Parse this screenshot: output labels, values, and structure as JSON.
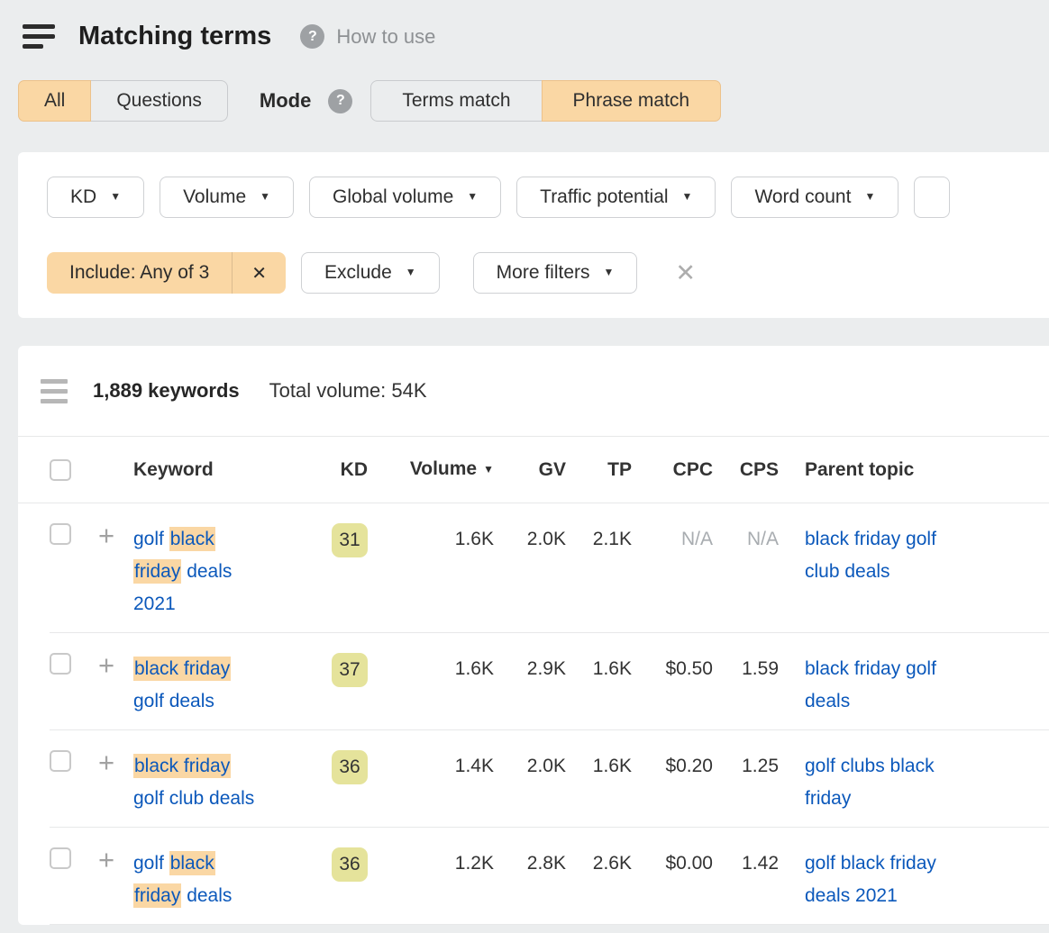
{
  "header": {
    "title": "Matching terms",
    "help_label": "How to use"
  },
  "tabs": {
    "scope": [
      "All",
      "Questions"
    ],
    "scope_active": "All",
    "mode_label": "Mode",
    "modes": [
      "Terms match",
      "Phrase match"
    ],
    "mode_active": "Phrase match"
  },
  "filters": {
    "metric_dropdowns": [
      "KD",
      "Volume",
      "Global volume",
      "Traffic potential",
      "Word count"
    ],
    "include_chip_label": "Include: Any of 3",
    "exclude_label": "Exclude",
    "more_filters_label": "More filters"
  },
  "results": {
    "count_label": "1,889 keywords",
    "total_volume_label": "Total volume: 54K"
  },
  "table": {
    "columns": [
      "Keyword",
      "KD",
      "Volume",
      "GV",
      "TP",
      "CPC",
      "CPS",
      "Parent topic"
    ],
    "sort": {
      "column": "Volume",
      "direction": "desc"
    },
    "rows": [
      {
        "keyword": "golf black friday deals 2021",
        "keyword_lines": [
          [
            {
              "t": "golf ",
              "h": false
            },
            {
              "t": "black",
              "h": true
            }
          ],
          [
            {
              "t": "friday",
              "h": true
            },
            {
              "t": " deals",
              "h": false
            }
          ],
          [
            {
              "t": "2021",
              "h": false
            }
          ]
        ],
        "kd": "31",
        "volume": "1.6K",
        "gv": "2.0K",
        "tp": "2.1K",
        "cpc": "N/A",
        "cps": "N/A",
        "parent": "black friday golf club deals",
        "parent_lines": [
          "black friday golf",
          "club deals"
        ]
      },
      {
        "keyword": "black friday golf deals",
        "keyword_lines": [
          [
            {
              "t": "black friday",
              "h": true
            }
          ],
          [
            {
              "t": "golf deals",
              "h": false
            }
          ]
        ],
        "kd": "37",
        "volume": "1.6K",
        "gv": "2.9K",
        "tp": "1.6K",
        "cpc": "$0.50",
        "cps": "1.59",
        "parent": "black friday golf deals",
        "parent_lines": [
          "black friday golf",
          "deals"
        ]
      },
      {
        "keyword": "black friday golf club deals",
        "keyword_lines": [
          [
            {
              "t": "black friday",
              "h": true
            }
          ],
          [
            {
              "t": "golf club deals",
              "h": false
            }
          ]
        ],
        "kd": "36",
        "volume": "1.4K",
        "gv": "2.0K",
        "tp": "1.6K",
        "cpc": "$0.20",
        "cps": "1.25",
        "parent": "golf clubs black friday",
        "parent_lines": [
          "golf clubs black",
          "friday"
        ]
      },
      {
        "keyword": "golf black friday deals",
        "keyword_lines": [
          [
            {
              "t": "golf ",
              "h": false
            },
            {
              "t": "black",
              "h": true
            }
          ],
          [
            {
              "t": "friday",
              "h": true
            },
            {
              "t": " deals",
              "h": false
            }
          ]
        ],
        "kd": "36",
        "volume": "1.2K",
        "gv": "2.8K",
        "tp": "2.6K",
        "cpc": "$0.00",
        "cps": "1.42",
        "parent": "golf black friday deals 2021",
        "parent_lines": [
          "golf black friday",
          "deals 2021"
        ]
      }
    ]
  },
  "colors": {
    "page_bg": "#ebedee",
    "accent_orange": "#fad7a4",
    "kd_badge": "#e5e39b",
    "link_blue": "#0b58bb"
  }
}
